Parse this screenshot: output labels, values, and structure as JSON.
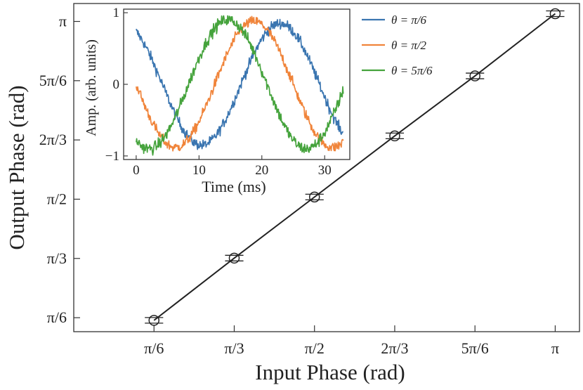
{
  "chart_data": [
    {
      "type": "scatter",
      "xlabel": "Input Phase (rad)",
      "ylabel": "Output Phase (rad)",
      "x_ticks": [
        {
          "value": 0.5236,
          "label": "π/6"
        },
        {
          "value": 1.0472,
          "label": "π/3"
        },
        {
          "value": 1.5708,
          "label": "π/2"
        },
        {
          "value": 2.0944,
          "label": "2π/3"
        },
        {
          "value": 2.618,
          "label": "5π/6"
        },
        {
          "value": 3.1416,
          "label": "π"
        }
      ],
      "y_ticks": [
        {
          "value": 0.5236,
          "label": "π/6"
        },
        {
          "value": 1.0472,
          "label": "π/3"
        },
        {
          "value": 1.5708,
          "label": "π/2"
        },
        {
          "value": 2.0944,
          "label": "2π/3"
        },
        {
          "value": 2.618,
          "label": "5π/6"
        },
        {
          "value": 3.1416,
          "label": "π"
        }
      ],
      "xlim": [
        0.0,
        3.3
      ],
      "ylim": [
        0.4,
        3.3
      ],
      "series": [
        {
          "x": [
            0.5236,
            1.0472,
            1.5708,
            2.0944,
            2.618,
            3.1416
          ],
          "y": [
            0.5,
            1.05,
            1.59,
            2.13,
            2.66,
            3.21
          ],
          "xerr": [
            0.06,
            0.06,
            0.06,
            0.06,
            0.06,
            0.06
          ],
          "yerr": [
            0.015,
            0.015,
            0.015,
            0.015,
            0.015,
            0.015
          ],
          "marker": "open-circle",
          "color": "#222222",
          "fit_line": true
        }
      ],
      "grid": false
    },
    {
      "type": "line",
      "xlabel": "Time (ms)",
      "ylabel": "Amp. (arb. units)",
      "x_ticks": [
        0,
        10,
        20,
        30
      ],
      "y_ticks": [
        -1,
        0,
        1
      ],
      "xlim": [
        -2,
        34
      ],
      "ylim": [
        -1.05,
        1.05
      ],
      "legend_position": "top-right (outside inset)",
      "series": [
        {
          "name": "θ = π/6",
          "color": "#3a75b0",
          "period_ms": 25,
          "phase_rad": 0.5236,
          "amplitude": 0.85,
          "noise": 0.07
        },
        {
          "name": "θ = π/2",
          "color": "#f0843a",
          "period_ms": 25,
          "phase_rad": 1.5708,
          "amplitude": 0.88,
          "noise": 0.07
        },
        {
          "name": "θ = 5π/6",
          "color": "#45a33c",
          "period_ms": 25,
          "phase_rad": 2.618,
          "amplitude": 0.9,
          "noise": 0.08
        }
      ]
    }
  ]
}
